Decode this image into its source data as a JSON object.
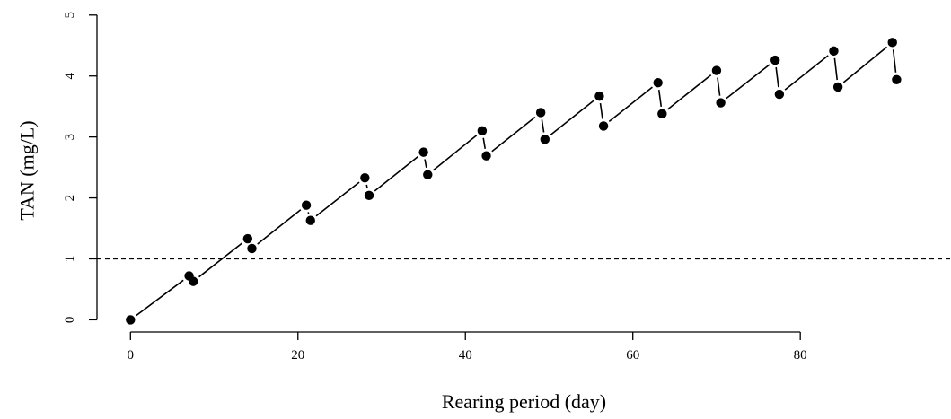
{
  "chart_data": {
    "type": "scatter",
    "title": "",
    "xlabel": "Rearing period (day)",
    "ylabel": "TAN (mg/L)",
    "xlim": [
      -4,
      98
    ],
    "ylim": [
      -0.2,
      5.1
    ],
    "x_ticks": [
      0,
      20,
      40,
      60,
      80
    ],
    "y_ticks": [
      0,
      1,
      2,
      3,
      4,
      5
    ],
    "x_tick_labels": [
      "0",
      "20",
      "40",
      "60",
      "80"
    ],
    "y_tick_labels": [
      "0",
      "1",
      "2",
      "3",
      "4",
      "5"
    ],
    "grid": false,
    "legend": "none",
    "reference_line": {
      "y": 1,
      "style": "dashed"
    },
    "series": [
      {
        "style": "points joined by line segments",
        "x": [
          0,
          7,
          7.5,
          14,
          14.5,
          21,
          21.5,
          28,
          28.5,
          35,
          35.5,
          42,
          42.5,
          49,
          49.5,
          56,
          56.5,
          63,
          63.5,
          70,
          70.5,
          77,
          77.5,
          84,
          84.5,
          91,
          91.5
        ],
        "y": [
          0,
          0.72,
          0.63,
          1.33,
          1.17,
          1.88,
          1.63,
          2.33,
          2.04,
          2.75,
          2.38,
          3.1,
          2.69,
          3.4,
          2.96,
          3.67,
          3.18,
          3.89,
          3.38,
          4.09,
          3.56,
          4.26,
          3.7,
          4.41,
          3.82,
          4.55,
          3.94
        ]
      }
    ]
  }
}
